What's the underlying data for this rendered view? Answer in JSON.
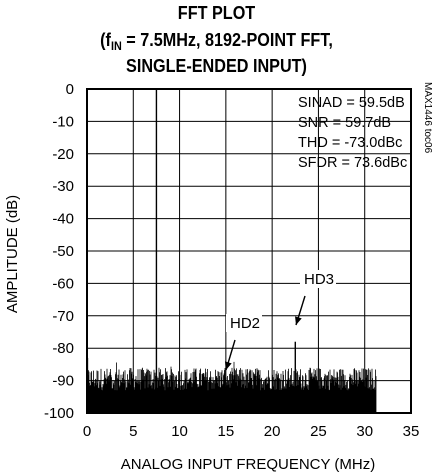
{
  "title": {
    "line1": "FFT PLOT",
    "line2_prefix": "(f",
    "line2_sub": "IN",
    "line2_suffix": " = 7.5MHz, 8192-POINT FFT,",
    "line3": "SINGLE-ENDED INPUT)"
  },
  "chart_data": {
    "type": "line",
    "xlabel": "ANALOG INPUT FREQUENCY (MHz)",
    "ylabel": "AMPLITUDE (dB)",
    "xlim": [
      0,
      35
    ],
    "ylim": [
      -100,
      0
    ],
    "xticks": [
      0,
      5,
      10,
      15,
      20,
      25,
      30,
      35
    ],
    "yticks": [
      0,
      -10,
      -20,
      -30,
      -40,
      -50,
      -60,
      -70,
      -80,
      -90,
      -100
    ],
    "grid": true,
    "series": [
      {
        "x_range": [
          0,
          31.25
        ],
        "noise_floor_db": [
          -92,
          -86
        ],
        "peaks": [
          {
            "x": 0.05,
            "y": -83
          },
          {
            "x": 7.5,
            "y": 0
          },
          {
            "x": 15.0,
            "y": -89
          },
          {
            "x": 22.5,
            "y": -78
          }
        ]
      }
    ],
    "annotations": [
      {
        "text": "HD2",
        "x": 15.0,
        "y": -89
      },
      {
        "text": "HD3",
        "x": 22.5,
        "y": -78
      }
    ],
    "stats": [
      "SINAD = 59.5dB",
      "SNR = 59.7dB",
      "THD = -73.0dBc",
      "SFDR = 73.6dBc"
    ],
    "part_number": "MAX1446 toc06",
    "colors": {
      "line": "#000000",
      "grid": "#000000",
      "background": "#ffffff"
    }
  }
}
